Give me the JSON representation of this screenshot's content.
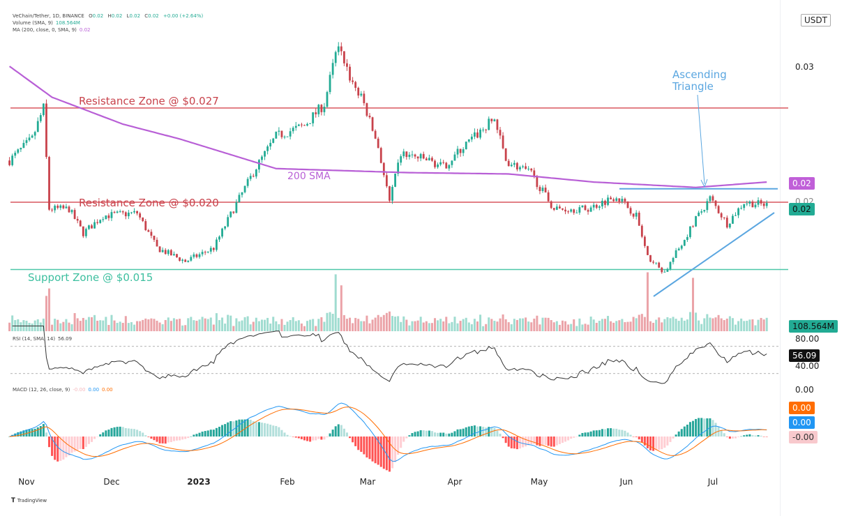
{
  "header": {
    "symbol": "VeChain/Tether, 1D, BINANCE",
    "ohlc": {
      "o_label": "O",
      "o": "0.02",
      "h_label": "H",
      "h": "0.02",
      "l_label": "L",
      "l": "0.02",
      "c_label": "C",
      "c": "0.02",
      "change": "+0.00 (+2.64%)"
    },
    "volume_label": "Volume (SMA, 9)",
    "volume_value": "108.564M",
    "ma_label": "MA (200, close, 0, SMA, 9)",
    "ma_value": "0.02",
    "rsi_label": "RSI (14, SMA, 14)",
    "rsi_value": "56.09",
    "macd_label": "MACD (12, 26, close, 9)",
    "macd_hist": "-0.00",
    "macd_line": "0.00",
    "macd_signal": "0.00"
  },
  "axis": {
    "currency": "USDT",
    "price_ticks": [
      "0.03",
      "0.02"
    ],
    "ma_badge": "0.02",
    "price_badge": "0.02",
    "volume_badge": "108.564M",
    "rsi_ticks": [
      "80.00",
      "40.00"
    ],
    "rsi_badge": "56.09",
    "macd_tick": "0.00",
    "macd_signal_badge": "0.00",
    "macd_line_badge": "0.00",
    "macd_hist_badge": "-0.00",
    "months": [
      "Nov",
      "Dec",
      "2023",
      "Feb",
      "Mar",
      "Apr",
      "May",
      "Jun",
      "Jul"
    ]
  },
  "annotations": {
    "resistance_high": "Resistance Zone @ $0.027",
    "resistance_low": "Resistance Zone @ $0.020",
    "support": "Support Zone @ $0.015",
    "sma_label": "200 SMA",
    "pattern_line1": "Ascending",
    "pattern_line2": "Triangle"
  },
  "branding": "TradingView",
  "colors": {
    "up": "#22ab94",
    "down": "#c8424b",
    "vol_up": "#9fdcd0",
    "vol_down": "#eba3a8",
    "sma": "#b85fd6",
    "resistance": "#d9575f",
    "support": "#4cc7a8",
    "triangle": "#5aa6e0",
    "macd": "#2196f3",
    "signal": "#ff6d00"
  },
  "chart_data": {
    "type": "candlestick",
    "title": "VeChain/Tether, 1D, BINANCE",
    "ylabel": "USDT",
    "ylim": [
      0.0135,
      0.0325
    ],
    "resistance_levels": [
      0.027,
      0.02
    ],
    "support_levels": [
      0.015
    ],
    "triangle_top": 0.021,
    "price_path": [
      [
        "2022-10-26",
        0.0231
      ],
      [
        "2022-11-03",
        0.0247
      ],
      [
        "2022-11-07",
        0.027
      ],
      [
        "2022-11-09",
        0.0195
      ],
      [
        "2022-11-16",
        0.0195
      ],
      [
        "2022-11-21",
        0.0177
      ],
      [
        "2022-11-28",
        0.019
      ],
      [
        "2022-12-10",
        0.0192
      ],
      [
        "2022-12-17",
        0.0166
      ],
      [
        "2022-12-27",
        0.0156
      ],
      [
        "2023-01-06",
        0.0166
      ],
      [
        "2023-01-13",
        0.0195
      ],
      [
        "2023-01-21",
        0.0226
      ],
      [
        "2023-01-28",
        0.0249
      ],
      [
        "2023-02-07",
        0.0257
      ],
      [
        "2023-02-14",
        0.0273
      ],
      [
        "2023-02-19",
        0.0319
      ],
      [
        "2023-02-23",
        0.0293
      ],
      [
        "2023-02-28",
        0.0273
      ],
      [
        "2023-03-05",
        0.0241
      ],
      [
        "2023-03-09",
        0.02
      ],
      [
        "2023-03-13",
        0.0236
      ],
      [
        "2023-03-23",
        0.0231
      ],
      [
        "2023-03-28",
        0.0226
      ],
      [
        "2023-04-04",
        0.0241
      ],
      [
        "2023-04-15",
        0.0262
      ],
      [
        "2023-04-19",
        0.0231
      ],
      [
        "2023-04-28",
        0.0221
      ],
      [
        "2023-05-06",
        0.0195
      ],
      [
        "2023-05-18",
        0.0195
      ],
      [
        "2023-05-28",
        0.0205
      ],
      [
        "2023-06-04",
        0.019
      ],
      [
        "2023-06-08",
        0.0159
      ],
      [
        "2023-06-14",
        0.0148
      ],
      [
        "2023-06-20",
        0.0169
      ],
      [
        "2023-06-24",
        0.0184
      ],
      [
        "2023-06-30",
        0.0203
      ],
      [
        "2023-07-06",
        0.0184
      ],
      [
        "2023-07-12",
        0.02
      ],
      [
        "2023-07-20",
        0.0198
      ]
    ],
    "sma200_path": [
      [
        "2022-10-26",
        0.0301
      ],
      [
        "2022-11-10",
        0.0278
      ],
      [
        "2022-12-05",
        0.0258
      ],
      [
        "2022-12-25",
        0.0247
      ],
      [
        "2023-01-28",
        0.0225
      ],
      [
        "2023-03-15",
        0.0222
      ],
      [
        "2023-04-20",
        0.0221
      ],
      [
        "2023-05-20",
        0.0215
      ],
      [
        "2023-06-25",
        0.0211
      ],
      [
        "2023-07-20",
        0.0215
      ]
    ],
    "volume_spikes": [
      "2023-02-18",
      "2023-02-20",
      "2023-06-08",
      "2023-06-24"
    ],
    "rsi_last": 56.09,
    "rsi_bands": [
      70,
      30
    ]
  }
}
